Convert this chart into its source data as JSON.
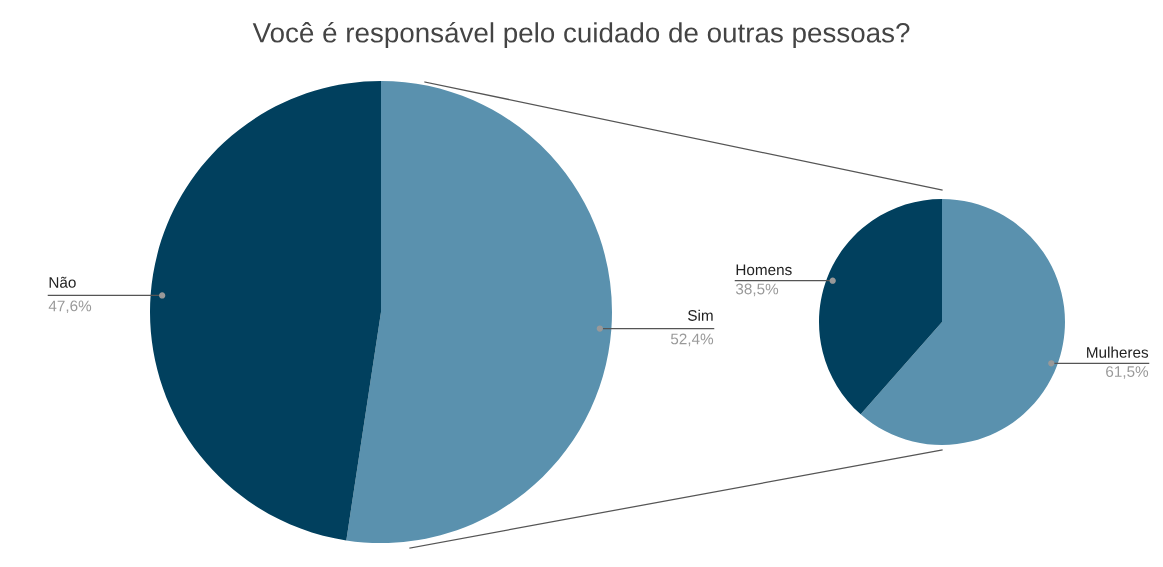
{
  "chart_data": [
    {
      "type": "pie",
      "title": "Você é responsável pelo cuidado de outras pessoas?",
      "categories": [
        "Sim",
        "Não"
      ],
      "values": [
        52.4,
        47.6
      ],
      "colors": [
        "#5a91ae",
        "#01405e"
      ],
      "value_labels": [
        "52,4%",
        "47,6%"
      ]
    },
    {
      "type": "pie",
      "categories": [
        "Mulheres",
        "Homens"
      ],
      "values": [
        61.5,
        38.5
      ],
      "colors": [
        "#5a91ae",
        "#01405e"
      ],
      "value_labels": [
        "61,5%",
        "38,5%"
      ]
    }
  ]
}
